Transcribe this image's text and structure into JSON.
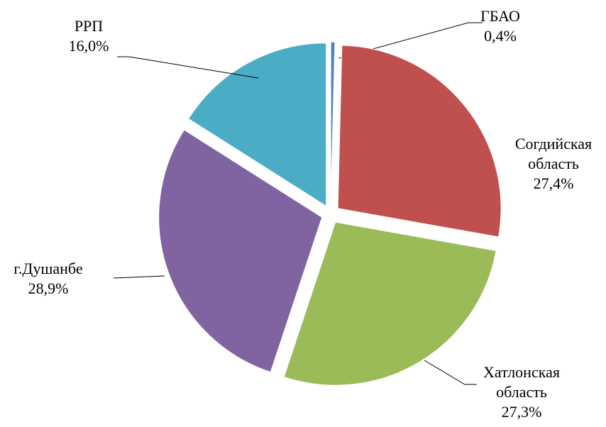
{
  "chart_data": {
    "type": "pie",
    "categories": [
      "ГБАО",
      "Согдийская область",
      "Хатлонская область",
      "г.Душанбе",
      "РРП"
    ],
    "values": [
      0.4,
      27.4,
      27.3,
      28.9,
      16.0
    ],
    "value_labels": [
      "0,4%",
      "27,4%",
      "27,3%",
      "28,9%",
      "16,0%"
    ],
    "colors": [
      "#4f81bd",
      "#c0504d",
      "#9bbb59",
      "#8064a2",
      "#4bacc6"
    ]
  }
}
